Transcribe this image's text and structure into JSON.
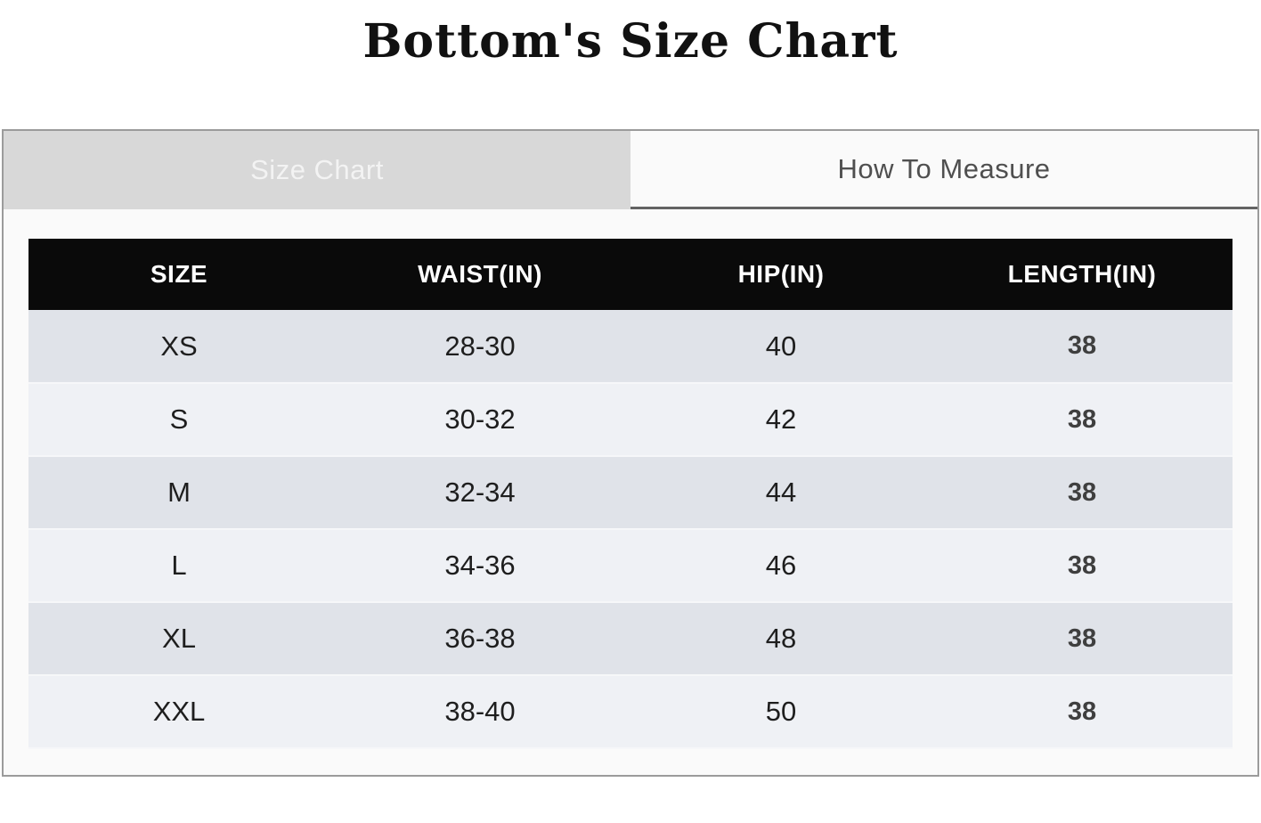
{
  "page": {
    "title": "Bottom's Size Chart"
  },
  "tabs": [
    {
      "label": "Size Chart",
      "active": true
    },
    {
      "label": "How To Measure",
      "active": false
    }
  ],
  "table": {
    "columns": [
      "SIZE",
      "WAIST(IN)",
      "HIP(IN)",
      "LENGTH(IN)"
    ],
    "rows": [
      {
        "size": "XS",
        "waist": "28-30",
        "hip": "40",
        "length": "38"
      },
      {
        "size": "S",
        "waist": "30-32",
        "hip": "42",
        "length": "38"
      },
      {
        "size": "M",
        "waist": "32-34",
        "hip": "44",
        "length": "38"
      },
      {
        "size": "L",
        "waist": "34-36",
        "hip": "46",
        "length": "38"
      },
      {
        "size": "XL",
        "waist": "36-38",
        "hip": "48",
        "length": "38"
      },
      {
        "size": "XXL",
        "waist": "38-40",
        "hip": "50",
        "length": "38"
      }
    ]
  },
  "colors": {
    "header_bg": "#0a0a0a",
    "header_text": "#ffffff",
    "row_dark": "#e0e3e9",
    "row_light": "#eff1f5",
    "tab_active_bg": "#d8d8d8",
    "tab_active_text": "#f3f3f3",
    "tab_inactive_bg": "#fafafa",
    "tab_inactive_text": "#4f4f4f",
    "container_border": "#9b9b9b",
    "tab_underline": "#636363",
    "body_text": "#1e1e1e",
    "length_text": "#3f3f3f"
  }
}
